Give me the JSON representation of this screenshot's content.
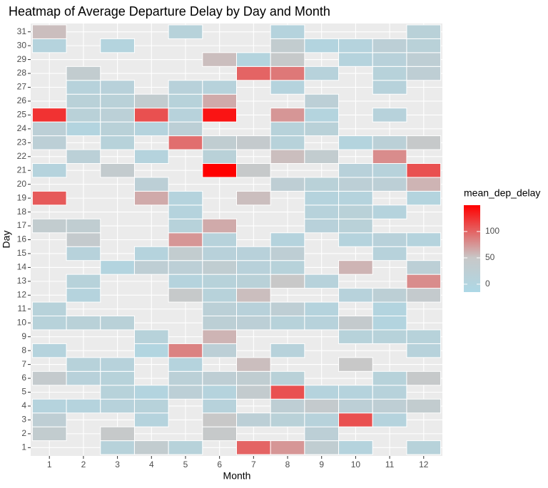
{
  "chart_data": {
    "type": "heatmap",
    "title": "Heatmap of Average Departure Delay by Day and Month",
    "x_label": "Month",
    "y_label": "Day",
    "x": [
      1,
      2,
      3,
      4,
      5,
      6,
      7,
      8,
      9,
      10,
      11,
      12
    ],
    "y": [
      1,
      2,
      3,
      4,
      5,
      6,
      7,
      8,
      9,
      10,
      11,
      12,
      13,
      14,
      15,
      16,
      17,
      18,
      19,
      20,
      21,
      22,
      23,
      24,
      25,
      26,
      27,
      28,
      29,
      30,
      31
    ],
    "xlim": [
      0.45,
      12.55
    ],
    "ylim": [
      0.4,
      31.6
    ],
    "z": [
      [
        null,
        null,
        10,
        35,
        10,
        null,
        100,
        75,
        30,
        5,
        null,
        10
      ],
      [
        35,
        null,
        45,
        null,
        null,
        45,
        null,
        null,
        20,
        null,
        null,
        null
      ],
      [
        25,
        null,
        null,
        5,
        null,
        50,
        20,
        15,
        8,
        110,
        5,
        null
      ],
      [
        5,
        5,
        8,
        10,
        null,
        8,
        null,
        25,
        40,
        20,
        25,
        35
      ],
      [
        null,
        null,
        10,
        0,
        20,
        5,
        38,
        110,
        5,
        5,
        8,
        null
      ],
      [
        40,
        12,
        10,
        null,
        18,
        25,
        30,
        15,
        null,
        null,
        10,
        45
      ],
      [
        null,
        10,
        8,
        null,
        5,
        null,
        55,
        null,
        null,
        50,
        null,
        null
      ],
      [
        5,
        null,
        null,
        -2,
        85,
        20,
        null,
        8,
        null,
        null,
        null,
        8
      ],
      [
        null,
        null,
        null,
        10,
        null,
        60,
        null,
        null,
        null,
        10,
        10,
        10
      ],
      [
        10,
        15,
        15,
        null,
        null,
        22,
        20,
        10,
        8,
        40,
        0,
        null
      ],
      [
        10,
        null,
        null,
        null,
        null,
        18,
        12,
        25,
        5,
        null,
        0,
        null
      ],
      [
        null,
        5,
        null,
        null,
        45,
        10,
        55,
        null,
        null,
        8,
        22,
        40
      ],
      [
        null,
        10,
        null,
        null,
        5,
        10,
        15,
        50,
        8,
        null,
        null,
        80
      ],
      [
        null,
        null,
        0,
        25,
        20,
        30,
        12,
        10,
        null,
        60,
        null,
        20
      ],
      [
        null,
        8,
        null,
        5,
        35,
        12,
        12,
        25,
        null,
        null,
        8,
        null
      ],
      [
        null,
        40,
        null,
        null,
        75,
        8,
        null,
        5,
        null,
        5,
        12,
        5
      ],
      [
        35,
        30,
        null,
        null,
        10,
        65,
        null,
        null,
        12,
        15,
        null,
        null
      ],
      [
        null,
        null,
        null,
        null,
        5,
        null,
        null,
        null,
        8,
        15,
        5,
        null
      ],
      [
        105,
        null,
        null,
        65,
        5,
        null,
        55,
        null,
        5,
        5,
        null,
        2
      ],
      [
        null,
        null,
        null,
        20,
        null,
        null,
        null,
        25,
        15,
        20,
        20,
        60
      ],
      [
        5,
        null,
        38,
        null,
        null,
        150,
        45,
        null,
        null,
        12,
        8,
        110
      ],
      [
        null,
        18,
        null,
        5,
        null,
        15,
        null,
        55,
        35,
        null,
        80,
        null
      ],
      [
        20,
        null,
        10,
        null,
        95,
        30,
        40,
        10,
        null,
        2,
        18,
        45
      ],
      [
        20,
        0,
        15,
        5,
        20,
        null,
        null,
        10,
        15,
        null,
        null,
        null
      ],
      [
        125,
        15,
        18,
        110,
        8,
        140,
        null,
        75,
        2,
        null,
        8,
        null
      ],
      [
        null,
        15,
        15,
        35,
        10,
        65,
        null,
        null,
        20,
        null,
        null,
        null
      ],
      [
        null,
        8,
        12,
        null,
        12,
        8,
        null,
        5,
        null,
        null,
        8,
        null
      ],
      [
        null,
        35,
        null,
        null,
        null,
        null,
        100,
        90,
        8,
        null,
        10,
        25
      ],
      [
        null,
        null,
        null,
        null,
        null,
        55,
        2,
        45,
        null,
        5,
        12,
        25
      ],
      [
        5,
        null,
        3,
        null,
        null,
        null,
        null,
        35,
        0,
        5,
        20,
        15
      ],
      [
        55,
        null,
        null,
        null,
        10,
        null,
        null,
        5,
        null,
        null,
        null,
        15
      ]
    ],
    "legend_title": "mean_dep_delay",
    "zlim": [
      -15,
      150
    ],
    "zticks": [
      0,
      50,
      100
    ],
    "color_low": "#add8e6",
    "color_mid": "#c8c8c8",
    "color_high": "#ff0000",
    "midpoint": 50,
    "grid": true
  }
}
